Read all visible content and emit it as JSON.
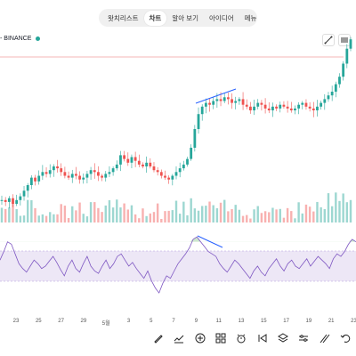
{
  "nav": {
    "tabs": [
      {
        "label": "왓치리스트",
        "active": false
      },
      {
        "label": "차트",
        "active": true
      },
      {
        "label": "알아 보기",
        "active": false
      },
      {
        "label": "아이디어",
        "active": false
      },
      {
        "label": "메뉴",
        "active": false
      }
    ]
  },
  "symbol": {
    "label": "- BINANCE"
  },
  "colors": {
    "up": "#26a69a",
    "down": "#ef5350",
    "rsi_line": "#7e57c2",
    "trendline": "#2962ff",
    "rsi_band": "#ede7f6"
  },
  "x_axis": {
    "ticks": [
      "23",
      "25",
      "27",
      "29",
      "5월",
      "3",
      "5",
      "7",
      "9",
      "11",
      "13",
      "15",
      "17",
      "19",
      "21",
      "23"
    ]
  },
  "toolbar": {
    "icons": [
      "brush-icon",
      "indicator-icon",
      "plus-icon",
      "layers-grid-icon",
      "alarm-icon",
      "replay-icon",
      "layers-icon",
      "settings-sliders-icon",
      "draw-tools-icon",
      "undo-icon"
    ]
  },
  "chart_data": {
    "type": "candlestick",
    "panels": [
      "price",
      "volume",
      "rsi"
    ],
    "rsi_levels": [
      70,
      30
    ],
    "trend": [
      0.12,
      0.11,
      0.13,
      0.1,
      0.12,
      0.14,
      0.17,
      0.2,
      0.24,
      0.22,
      0.25,
      0.27,
      0.26,
      0.28,
      0.3,
      0.29,
      0.27,
      0.25,
      0.24,
      0.26,
      0.25,
      0.23,
      0.24,
      0.26,
      0.28,
      0.27,
      0.25,
      0.24,
      0.26,
      0.27,
      0.29,
      0.31,
      0.36,
      0.34,
      0.32,
      0.35,
      0.33,
      0.31,
      0.3,
      0.32,
      0.3,
      0.28,
      0.27,
      0.25,
      0.24,
      0.23,
      0.25,
      0.27,
      0.29,
      0.31,
      0.34,
      0.4,
      0.5,
      0.58,
      0.62,
      0.64,
      0.63,
      0.65,
      0.66,
      0.65,
      0.67,
      0.66,
      0.64,
      0.65,
      0.66,
      0.63,
      0.62,
      0.6,
      0.62,
      0.64,
      0.63,
      0.61,
      0.6,
      0.62,
      0.61,
      0.63,
      0.62,
      0.61,
      0.6,
      0.61,
      0.63,
      0.64,
      0.62,
      0.61,
      0.6,
      0.62,
      0.64,
      0.66,
      0.68,
      0.7,
      0.74,
      0.78,
      0.85,
      0.93,
      0.98
    ],
    "rsi": [
      55,
      62,
      70,
      68,
      60,
      52,
      48,
      45,
      50,
      55,
      52,
      48,
      50,
      54,
      58,
      53,
      47,
      42,
      50,
      55,
      48,
      45,
      52,
      58,
      50,
      46,
      44,
      50,
      55,
      48,
      52,
      58,
      60,
      55,
      50,
      53,
      48,
      44,
      40,
      46,
      38,
      32,
      28,
      36,
      42,
      40,
      46,
      52,
      56,
      60,
      65,
      72,
      74,
      70,
      66,
      62,
      60,
      58,
      52,
      48,
      45,
      50,
      55,
      52,
      48,
      44,
      40,
      46,
      50,
      45,
      42,
      48,
      52,
      56,
      50,
      46,
      52,
      55,
      50,
      48,
      52,
      56,
      50,
      54,
      58,
      55,
      52,
      48,
      56,
      60,
      58,
      62,
      68,
      72,
      70
    ]
  }
}
